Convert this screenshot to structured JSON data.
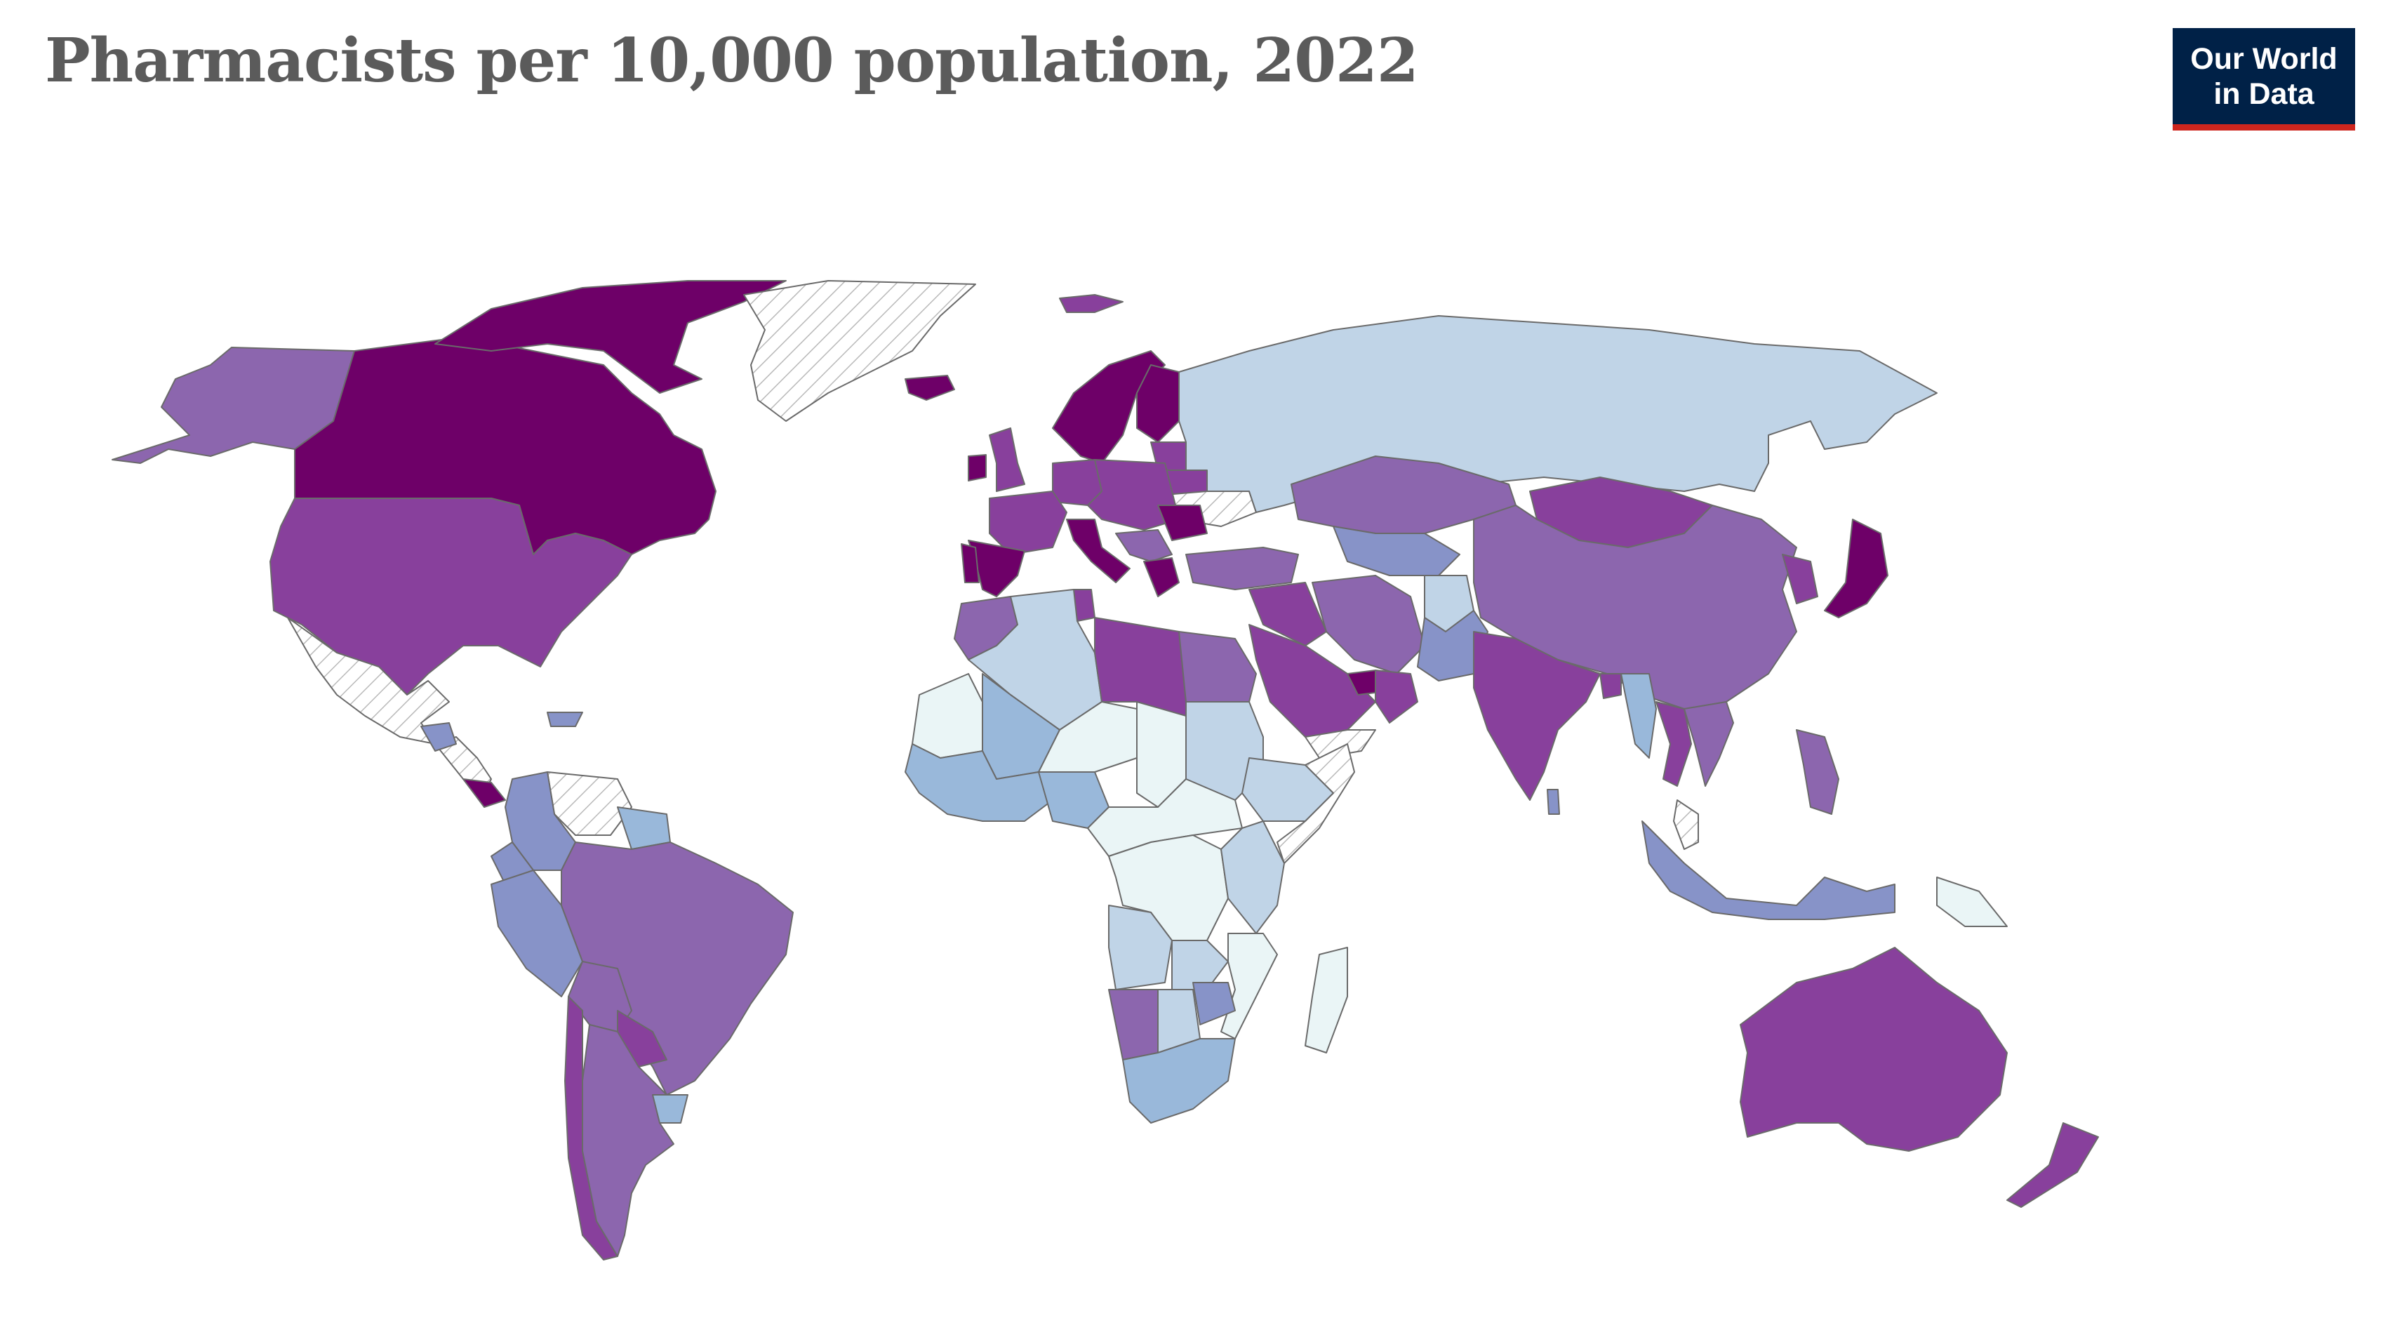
{
  "title": "Pharmacists per 10,000 population, 2022",
  "logo": {
    "line1": "Our World",
    "line2": "in Data",
    "bg": "#002147",
    "accent": "#ce261e"
  },
  "palette": {
    "level1": "#eaf5f6",
    "level2": "#c0d4e7",
    "level3": "#99b8da",
    "level4": "#8793c8",
    "level5": "#8c66ae",
    "level6": "#88409c",
    "level7": "#6e0068",
    "no_data": "hatch"
  },
  "regions": [
    {
      "name": "Canada",
      "level": 7
    },
    {
      "name": "United States",
      "level": 6
    },
    {
      "name": "Alaska",
      "level": 5
    },
    {
      "name": "Arctic islands (Canada)",
      "level": 7
    },
    {
      "name": "Greenland",
      "level": 0
    },
    {
      "name": "Mexico",
      "level": 0
    },
    {
      "name": "Central America",
      "level": 0
    },
    {
      "name": "Costa Rica",
      "level": 7
    },
    {
      "name": "Guatemala",
      "level": 4
    },
    {
      "name": "Hispaniola",
      "level": 4
    },
    {
      "name": "Venezuela",
      "level": 0
    },
    {
      "name": "Colombia",
      "level": 4
    },
    {
      "name": "Peru",
      "level": 4
    },
    {
      "name": "Ecuador",
      "level": 4
    },
    {
      "name": "Brazil",
      "level": 5
    },
    {
      "name": "Bolivia",
      "level": 5
    },
    {
      "name": "Paraguay",
      "level": 6
    },
    {
      "name": "Argentina",
      "level": 5
    },
    {
      "name": "Chile",
      "level": 6
    },
    {
      "name": "Uruguay",
      "level": 3
    },
    {
      "name": "Guyana/Suriname",
      "level": 3
    },
    {
      "name": "Iceland",
      "level": 7
    },
    {
      "name": "Scandinavia",
      "level": 7
    },
    {
      "name": "Finland",
      "level": 7
    },
    {
      "name": "United Kingdom",
      "level": 6
    },
    {
      "name": "Ireland",
      "level": 7
    },
    {
      "name": "France",
      "level": 6
    },
    {
      "name": "Spain",
      "level": 7
    },
    {
      "name": "Portugal",
      "level": 7
    },
    {
      "name": "Germany",
      "level": 6
    },
    {
      "name": "Italy",
      "level": 7
    },
    {
      "name": "Central Europe",
      "level": 6
    },
    {
      "name": "Romania",
      "level": 7
    },
    {
      "name": "Balkans",
      "level": 5
    },
    {
      "name": "Greece",
      "level": 7
    },
    {
      "name": "Ukraine",
      "level": 0
    },
    {
      "name": "Belarus",
      "level": 6
    },
    {
      "name": "Baltics",
      "level": 6
    },
    {
      "name": "Russia",
      "level": 2
    },
    {
      "name": "Kazakhstan",
      "level": 5
    },
    {
      "name": "Mongolia",
      "level": 6
    },
    {
      "name": "China",
      "level": 5
    },
    {
      "name": "Japan",
      "level": 7
    },
    {
      "name": "Korea",
      "level": 6
    },
    {
      "name": "Turkey",
      "level": 5
    },
    {
      "name": "Iran",
      "level": 5
    },
    {
      "name": "Afghanistan",
      "level": 2
    },
    {
      "name": "Pakistan",
      "level": 4
    },
    {
      "name": "India",
      "level": 6
    },
    {
      "name": "Central Asia",
      "level": 4
    },
    {
      "name": "Saudi Arabia",
      "level": 6
    },
    {
      "name": "Oman",
      "level": 6
    },
    {
      "name": "UAE/Qatar",
      "level": 7
    },
    {
      "name": "Yemen",
      "level": 0
    },
    {
      "name": "Iraq/Syria",
      "level": 6
    },
    {
      "name": "Myanmar",
      "level": 3
    },
    {
      "name": "Thailand",
      "level": 6
    },
    {
      "name": "Vietnam/Laos",
      "level": 5
    },
    {
      "name": "Malaysia",
      "level": 0
    },
    {
      "name": "Philippines",
      "level": 5
    },
    {
      "name": "Indonesia",
      "level": 4
    },
    {
      "name": "Papua New Guinea",
      "level": 1
    },
    {
      "name": "Australia",
      "level": 6
    },
    {
      "name": "New Zealand",
      "level": 6
    },
    {
      "name": "Sri Lanka",
      "level": 4
    },
    {
      "name": "Bangladesh",
      "level": 6
    },
    {
      "name": "Morocco",
      "level": 5
    },
    {
      "name": "Algeria",
      "level": 2
    },
    {
      "name": "Libya",
      "level": 6
    },
    {
      "name": "Egypt",
      "level": 5
    },
    {
      "name": "Tunisia",
      "level": 6
    },
    {
      "name": "Mauritania",
      "level": 1
    },
    {
      "name": "Mali",
      "level": 3
    },
    {
      "name": "Niger",
      "level": 1
    },
    {
      "name": "Chad",
      "level": 1
    },
    {
      "name": "Sudan",
      "level": 2
    },
    {
      "name": "Ethiopia",
      "level": 2
    },
    {
      "name": "Somalia",
      "level": 0
    },
    {
      "name": "West Africa",
      "level": 3
    },
    {
      "name": "Nigeria",
      "level": 3
    },
    {
      "name": "Central Africa",
      "level": 1
    },
    {
      "name": "DR Congo",
      "level": 1
    },
    {
      "name": "East Africa",
      "level": 2
    },
    {
      "name": "Angola",
      "level": 2
    },
    {
      "name": "Zambia",
      "level": 2
    },
    {
      "name": "Namibia",
      "level": 5
    },
    {
      "name": "Botswana",
      "level": 2
    },
    {
      "name": "Zimbabwe",
      "level": 4
    },
    {
      "name": "South Africa",
      "level": 3
    },
    {
      "name": "Mozambique",
      "level": 1
    },
    {
      "name": "Madagascar",
      "level": 1
    },
    {
      "name": "Svalbard",
      "level": 6
    }
  ]
}
